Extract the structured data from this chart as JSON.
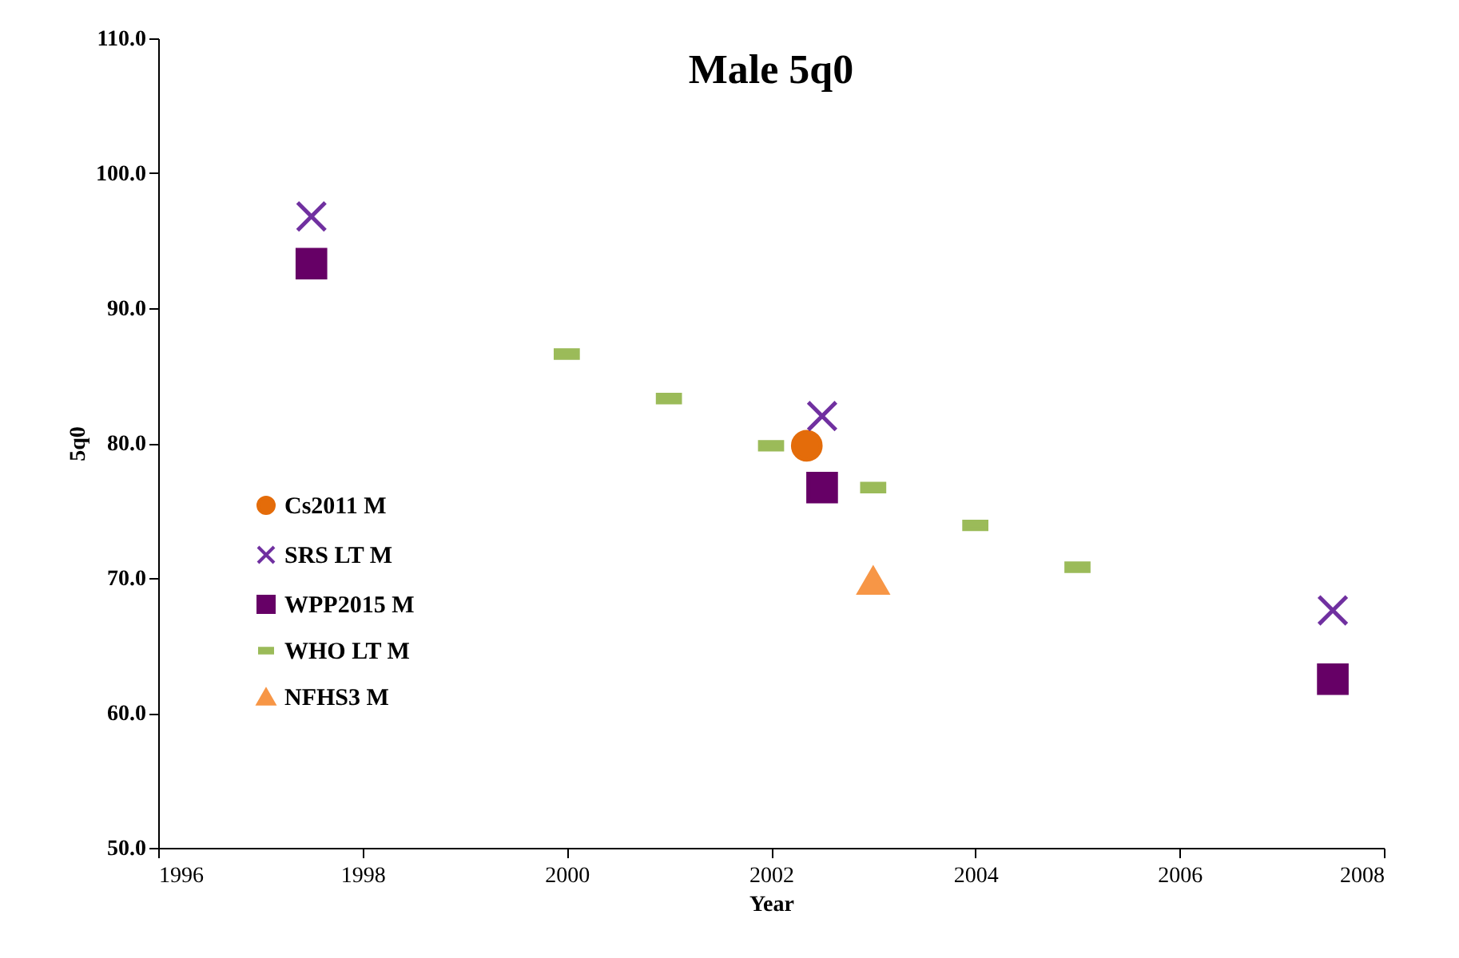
{
  "chart_data": {
    "type": "scatter",
    "title": "Male 5q0",
    "xlabel": "Year",
    "ylabel": "5q0",
    "xlim": [
      1996,
      2008
    ],
    "xticks": [
      1996,
      1998,
      2000,
      2002,
      2004,
      2006,
      2008
    ],
    "ylim": [
      50,
      110
    ],
    "yticks": [
      {
        "value": 50,
        "label": "50.0"
      },
      {
        "value": 60,
        "label": "60.0"
      },
      {
        "value": 70,
        "label": "70.0"
      },
      {
        "value": 80,
        "label": "80.0"
      },
      {
        "value": 90,
        "label": "90.0"
      },
      {
        "value": 100,
        "label": "100.0"
      },
      {
        "value": 110,
        "label": "110.0"
      }
    ],
    "grid": false,
    "legend": "left",
    "series": [
      {
        "name": "Cs2011 M",
        "color": "#e46c0a",
        "marker": "circle",
        "x": [
          2002.35
        ],
        "values": [
          79.8
        ]
      },
      {
        "name": "SRS LT M",
        "color": "#7030a0",
        "marker": "cross",
        "x": [
          1997.5,
          2002.5,
          2007.5
        ],
        "values": [
          96.8,
          82.0,
          67.6
        ]
      },
      {
        "name": "WPP2015 M",
        "color": "#660066",
        "marker": "square",
        "x": [
          1997.5,
          2002.5,
          2007.5
        ],
        "values": [
          93.3,
          76.7,
          62.5
        ]
      },
      {
        "name": "WHO LT M",
        "color": "#9bbb59",
        "x": [
          2000,
          2001,
          2002,
          2003,
          2004,
          2005
        ],
        "values": [
          86.6,
          83.3,
          79.8,
          76.7,
          73.9,
          70.8
        ]
      },
      {
        "name": "NFHS3 M",
        "color": "#f79646",
        "marker": "triangle",
        "x": [
          2003
        ],
        "values": [
          69.8
        ]
      }
    ]
  }
}
